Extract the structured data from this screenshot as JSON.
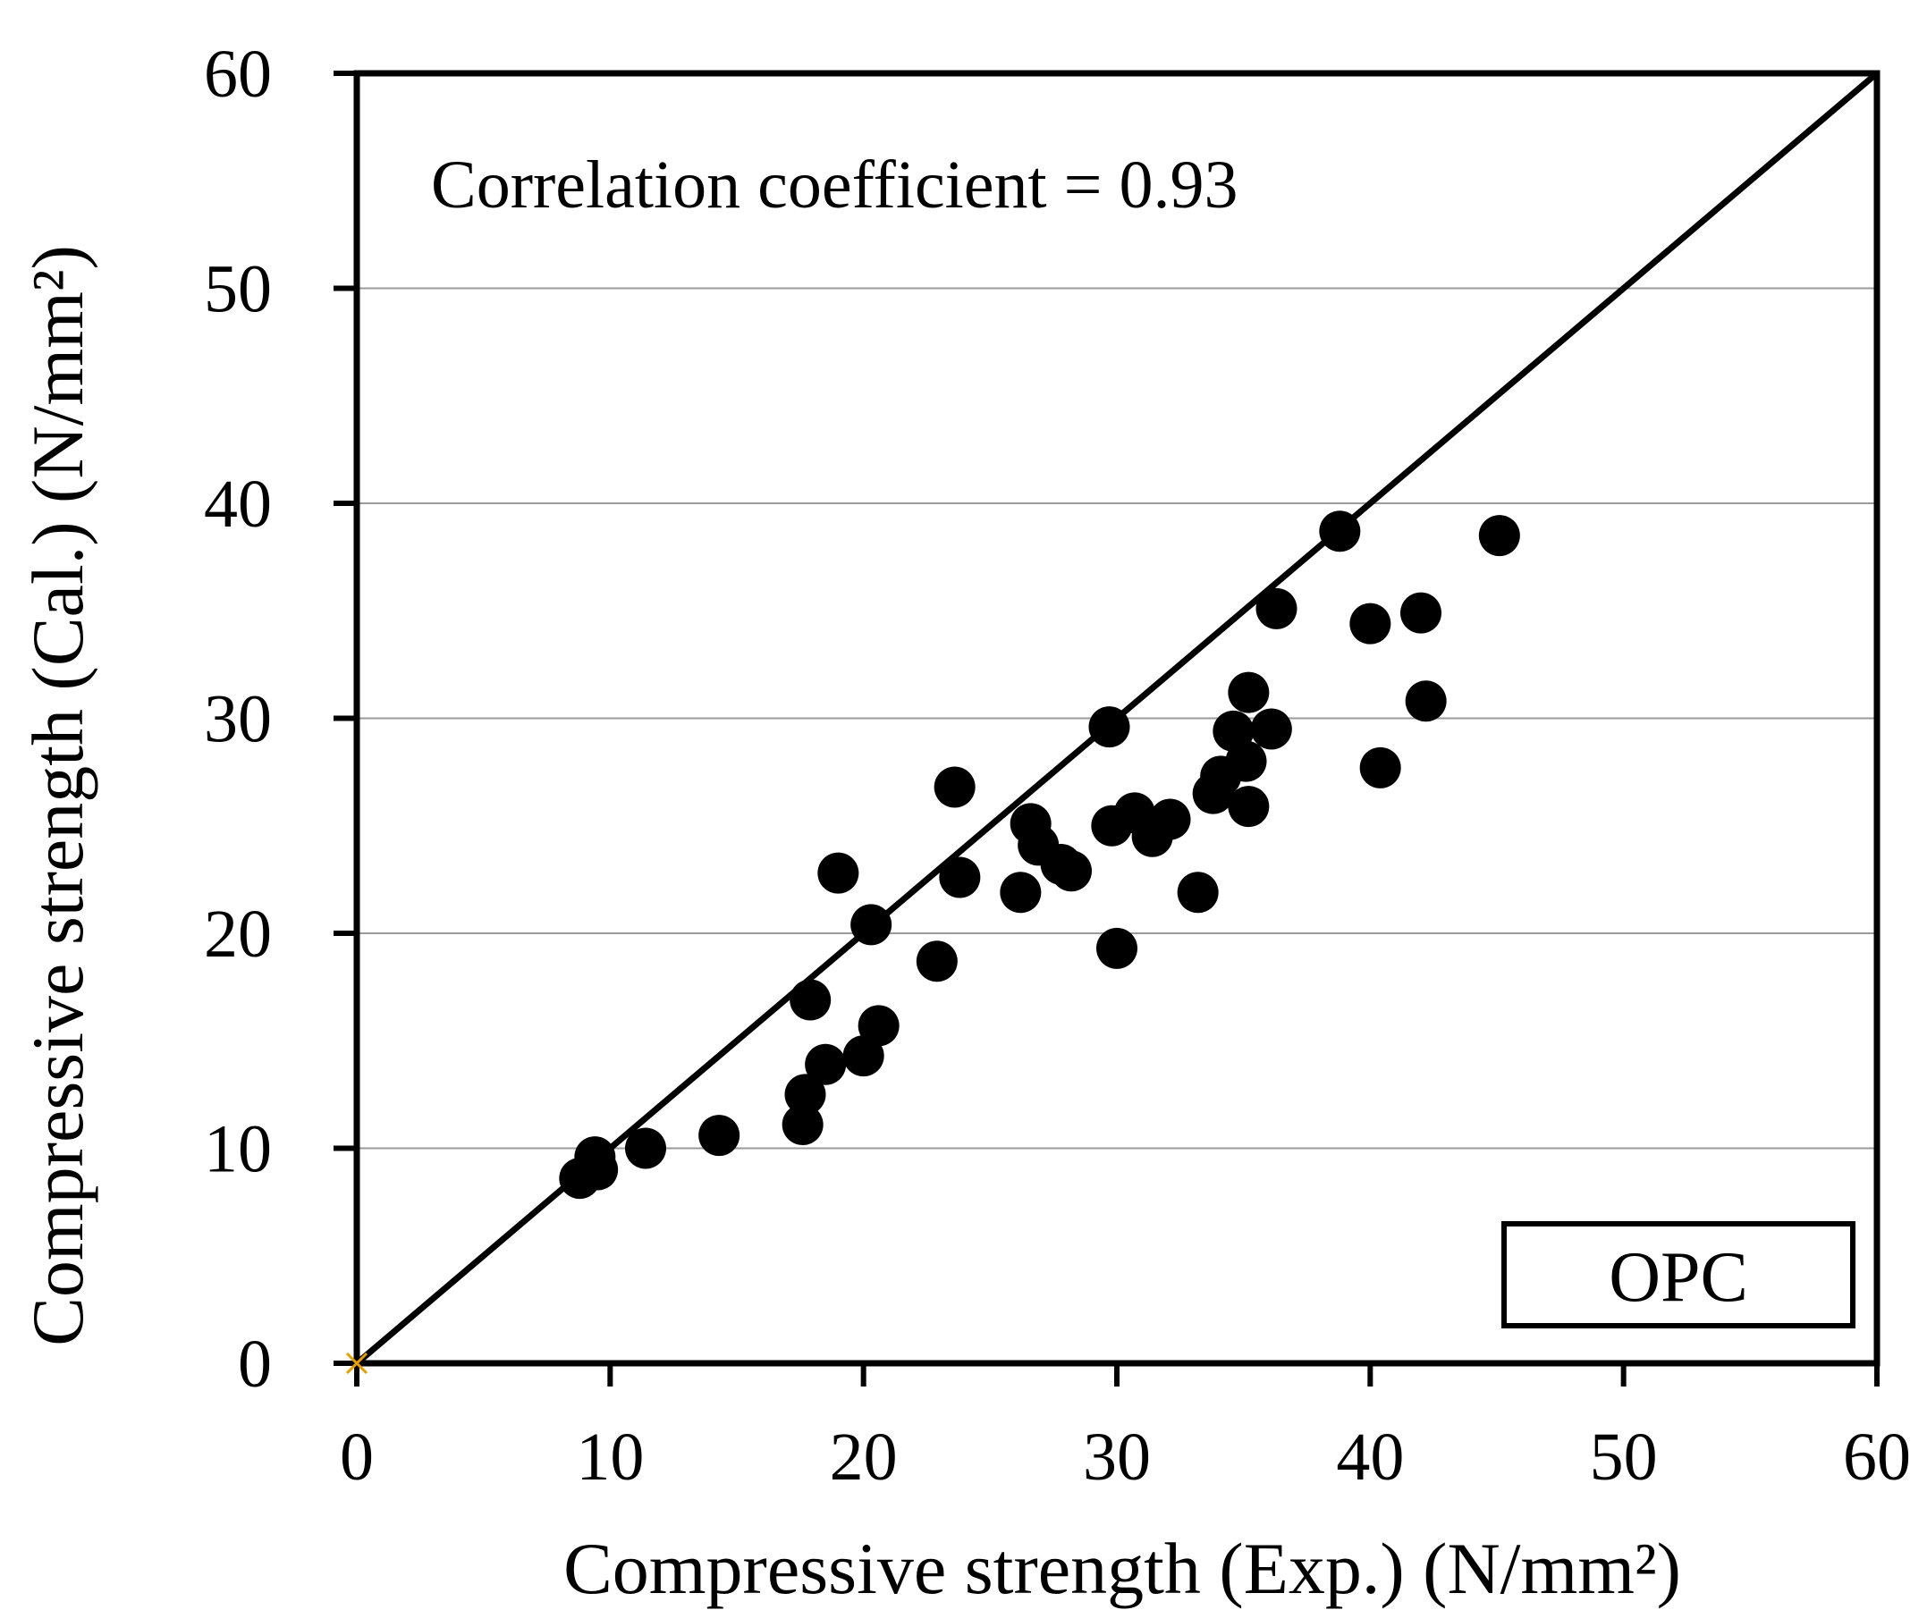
{
  "chart_data": {
    "type": "scatter",
    "title": "",
    "xlabel": "Compressive strength (Exp.) (N/mm²)",
    "ylabel": "Compressive strength (Cal.) (N/mm²)",
    "xlim": [
      0,
      60
    ],
    "ylim": [
      0,
      60
    ],
    "xticks": [
      0,
      10,
      20,
      30,
      40,
      50,
      60
    ],
    "yticks": [
      0,
      10,
      20,
      30,
      40,
      50,
      60
    ],
    "xtick_labels": [
      "0",
      "10",
      "20",
      "30",
      "40",
      "50",
      "60"
    ],
    "ytick_labels": [
      "0",
      "10",
      "20",
      "30",
      "40",
      "50",
      "60"
    ],
    "grid": "horizontal",
    "reference_line": {
      "type": "y=x",
      "from": [
        0,
        0
      ],
      "to": [
        60,
        60
      ]
    },
    "annotation": "Correlation coefficient  = 0.93",
    "legend": {
      "label": "OPC",
      "position": "bottom-right"
    },
    "series": [
      {
        "name": "OPC",
        "points": [
          [
            8.8,
            8.6
          ],
          [
            9.5,
            9.0
          ],
          [
            9.4,
            9.6
          ],
          [
            11.4,
            10.0
          ],
          [
            14.3,
            10.6
          ],
          [
            17.6,
            11.1
          ],
          [
            17.7,
            12.5
          ],
          [
            18.5,
            13.9
          ],
          [
            20.0,
            14.3
          ],
          [
            20.6,
            15.7
          ],
          [
            17.9,
            16.9
          ],
          [
            22.9,
            18.7
          ],
          [
            19.0,
            22.8
          ],
          [
            20.3,
            20.4
          ],
          [
            23.8,
            22.6
          ],
          [
            23.6,
            26.8
          ],
          [
            26.2,
            21.9
          ],
          [
            26.6,
            25.1
          ],
          [
            26.9,
            24.1
          ],
          [
            27.8,
            23.2
          ],
          [
            28.2,
            22.9
          ],
          [
            29.8,
            25.0
          ],
          [
            29.7,
            29.6
          ],
          [
            30.0,
            19.3
          ],
          [
            30.7,
            25.6
          ],
          [
            31.4,
            24.5
          ],
          [
            32.1,
            25.3
          ],
          [
            33.2,
            21.9
          ],
          [
            33.8,
            26.5
          ],
          [
            34.1,
            27.3
          ],
          [
            34.6,
            29.4
          ],
          [
            35.1,
            28.0
          ],
          [
            35.2,
            25.9
          ],
          [
            35.2,
            31.2
          ],
          [
            36.1,
            29.5
          ],
          [
            36.3,
            35.1
          ],
          [
            38.8,
            38.7
          ],
          [
            40.0,
            34.4
          ],
          [
            40.4,
            27.7
          ],
          [
            42.0,
            34.9
          ],
          [
            42.2,
            30.8
          ],
          [
            45.1,
            38.5
          ]
        ]
      }
    ],
    "colors": {
      "marker": "#000000",
      "gridline": "#9a9a9a",
      "origin_marker": "#e8a000"
    }
  }
}
